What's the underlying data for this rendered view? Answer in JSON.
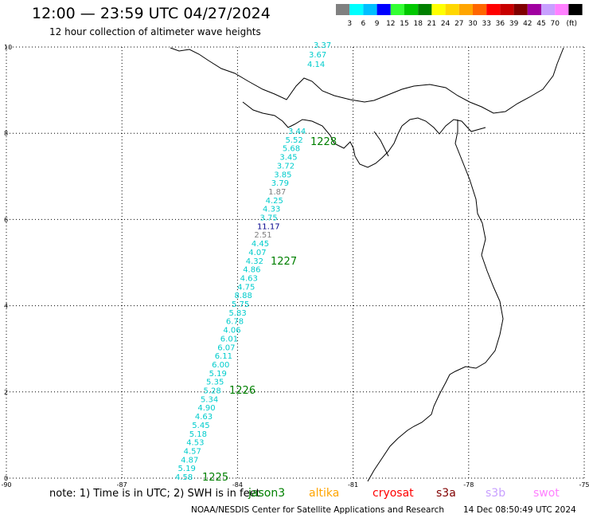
{
  "header": {
    "title": "12:00 — 23:59 UTC 04/27/2024",
    "subtitle": "12 hour collection of altimeter wave heights"
  },
  "colorbar": {
    "unit": "(ft)",
    "ticks": [
      "3",
      "6",
      "9",
      "12",
      "15",
      "18",
      "21",
      "24",
      "27",
      "30",
      "33",
      "36",
      "39",
      "42",
      "45",
      "70"
    ],
    "colors": [
      "#808080",
      "#00ffff",
      "#00bfff",
      "#0000ff",
      "#33ff33",
      "#00c800",
      "#008000",
      "#ffff00",
      "#ffd700",
      "#ffa500",
      "#ff6600",
      "#ff0000",
      "#c80000",
      "#800000",
      "#a000a0",
      "#c8a0ff",
      "#ff80ff",
      "#000000"
    ]
  },
  "map": {
    "lon_range": [
      -90,
      -75
    ],
    "lat_range": [
      0,
      10
    ],
    "x_ticks": [
      "-90",
      "-87",
      "-84",
      "-81",
      "-78",
      "-75"
    ],
    "y_ticks": [
      "0",
      "2",
      "4",
      "6",
      "8",
      "10"
    ],
    "colors": {
      "swh_low": "#00cccc",
      "swh_gray": "#808080",
      "swh_blue": "#00008b",
      "pass": "#008000"
    },
    "observations": [
      {
        "value": "3.37",
        "color": "cyan"
      },
      {
        "value": "3.67",
        "color": "cyan"
      },
      {
        "value": "4.14",
        "color": "cyan"
      },
      {
        "value": "3.44",
        "color": "cyan"
      },
      {
        "value": "5.52",
        "color": "cyan"
      },
      {
        "value": "5.68",
        "color": "cyan"
      },
      {
        "value": "3.45",
        "color": "cyan"
      },
      {
        "value": "3.72",
        "color": "cyan"
      },
      {
        "value": "3.85",
        "color": "cyan"
      },
      {
        "value": "3.79",
        "color": "cyan"
      },
      {
        "value": "1.87",
        "color": "gray"
      },
      {
        "value": "4.25",
        "color": "cyan"
      },
      {
        "value": "4.33",
        "color": "cyan"
      },
      {
        "value": "3.75",
        "color": "cyan"
      },
      {
        "value": "11.17",
        "color": "blue"
      },
      {
        "value": "2.51",
        "color": "gray"
      },
      {
        "value": "4.45",
        "color": "cyan"
      },
      {
        "value": "4.07",
        "color": "cyan"
      },
      {
        "value": "4.32",
        "color": "cyan"
      },
      {
        "value": "4.86",
        "color": "cyan"
      },
      {
        "value": "4.63",
        "color": "cyan"
      },
      {
        "value": "4.75",
        "color": "cyan"
      },
      {
        "value": "8.88",
        "color": "cyan"
      },
      {
        "value": "5.75",
        "color": "cyan"
      },
      {
        "value": "5.83",
        "color": "cyan"
      },
      {
        "value": "6.78",
        "color": "cyan"
      },
      {
        "value": "4.06",
        "color": "cyan"
      },
      {
        "value": "6.01",
        "color": "cyan"
      },
      {
        "value": "6.07",
        "color": "cyan"
      },
      {
        "value": "6.11",
        "color": "cyan"
      },
      {
        "value": "6.00",
        "color": "cyan"
      },
      {
        "value": "5.19",
        "color": "cyan"
      },
      {
        "value": "5.35",
        "color": "cyan"
      },
      {
        "value": "5.28",
        "color": "cyan"
      },
      {
        "value": "5.34",
        "color": "cyan"
      },
      {
        "value": "4.90",
        "color": "cyan"
      },
      {
        "value": "4.63",
        "color": "cyan"
      },
      {
        "value": "5.45",
        "color": "cyan"
      },
      {
        "value": "5.18",
        "color": "cyan"
      },
      {
        "value": "4.53",
        "color": "cyan"
      },
      {
        "value": "4.57",
        "color": "cyan"
      },
      {
        "value": "4.87",
        "color": "cyan"
      },
      {
        "value": "5.19",
        "color": "cyan"
      },
      {
        "value": "4.58",
        "color": "cyan"
      }
    ],
    "pass_labels": [
      "1228",
      "1227",
      "1226",
      "1225"
    ]
  },
  "note": "note: 1) Time is in UTC; 2) SWH is in feet",
  "missions": [
    {
      "name": "jason3",
      "color": "#008000"
    },
    {
      "name": "altika",
      "color": "#ffa500"
    },
    {
      "name": "cryosat",
      "color": "#ff0000"
    },
    {
      "name": "s3a",
      "color": "#800000"
    },
    {
      "name": "s3b",
      "color": "#c8a0ff"
    },
    {
      "name": "swot",
      "color": "#ff80ff"
    }
  ],
  "footer": {
    "credit": "NOAA/NESDIS Center for Satellite Applications and Research",
    "timestamp": "14 Dec 08:50:49 UTC 2024"
  }
}
